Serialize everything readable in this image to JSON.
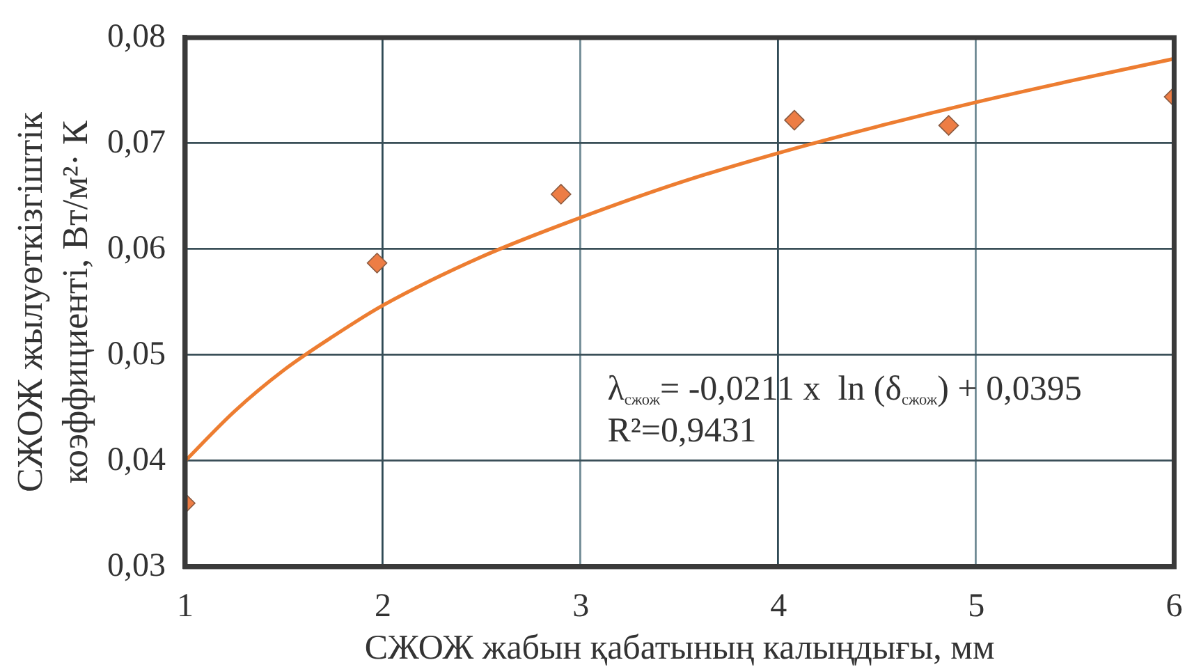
{
  "chart_data": {
    "type": "scatter",
    "xlabel": "СЖОЖ жабын қабатының калыңдығы, мм",
    "ylabel": "СЖОЖ жылуөткізгіштік коэффициенті, Вт/м²· К",
    "xlim": [
      1,
      6
    ],
    "xticks": [
      1,
      2,
      3,
      4,
      5,
      6
    ],
    "ylim": [
      0.03,
      0.08
    ],
    "yticks": [
      {
        "value": 0.03,
        "label": "0,03"
      },
      {
        "value": 0.04,
        "label": "0,04"
      },
      {
        "value": 0.05,
        "label": "0,05"
      },
      {
        "value": 0.06,
        "label": "0,06"
      },
      {
        "value": 0.07,
        "label": "0,07"
      },
      {
        "value": 0.08,
        "label": "0,08"
      }
    ],
    "grid": true,
    "marker": "diamond",
    "series": [
      {
        "type": "scatter",
        "color": "#ed7d45",
        "x": [
          1,
          1.97,
          2.9,
          4.08,
          4.86,
          6
        ],
        "values": [
          0.036,
          0.0587,
          0.0652,
          0.0722,
          0.0717,
          0.0744
        ]
      },
      {
        "type": "line",
        "color": "#ed7d31",
        "marker": "none",
        "line_style": "solid",
        "x": [
          1,
          1.25,
          1.5,
          1.75,
          2,
          2.5,
          3,
          3.5,
          4,
          4.5,
          5,
          5.5,
          6
        ],
        "values": [
          0.04,
          0.0447,
          0.0486,
          0.0518,
          0.0547,
          0.0593,
          0.063,
          0.0663,
          0.0691,
          0.0716,
          0.0739,
          0.076,
          0.078
        ]
      }
    ],
    "annotations": [
      "λ$_{сжож}$= -0,0211 x  ln (δ$_{сжож}$) + 0,0395",
      "R²=0,9431"
    ]
  }
}
